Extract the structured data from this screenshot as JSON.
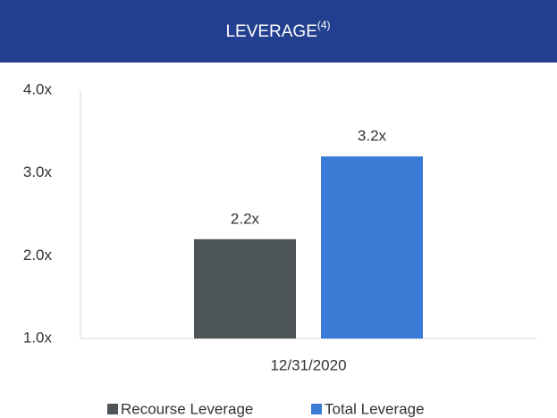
{
  "chart_data": {
    "type": "bar",
    "title": "LEVERAGE",
    "title_superscript": "(4)",
    "categories": [
      "12/31/2020"
    ],
    "series": [
      {
        "name": "Recourse Leverage",
        "color": "#4d5457",
        "values": [
          2.2
        ],
        "value_labels": [
          "2.2x"
        ]
      },
      {
        "name": "Total Leverage",
        "color": "#3a7bd5",
        "values": [
          3.2
        ],
        "value_labels": [
          "3.2x"
        ]
      }
    ],
    "ylim": [
      1.0,
      4.0
    ],
    "yticks": [
      {
        "value": 1.0,
        "label": "1.0x"
      },
      {
        "value": 2.0,
        "label": "2.0x"
      },
      {
        "value": 3.0,
        "label": "3.0x"
      },
      {
        "value": 4.0,
        "label": "4.0x"
      }
    ],
    "grid": false,
    "legend": "bottom"
  }
}
